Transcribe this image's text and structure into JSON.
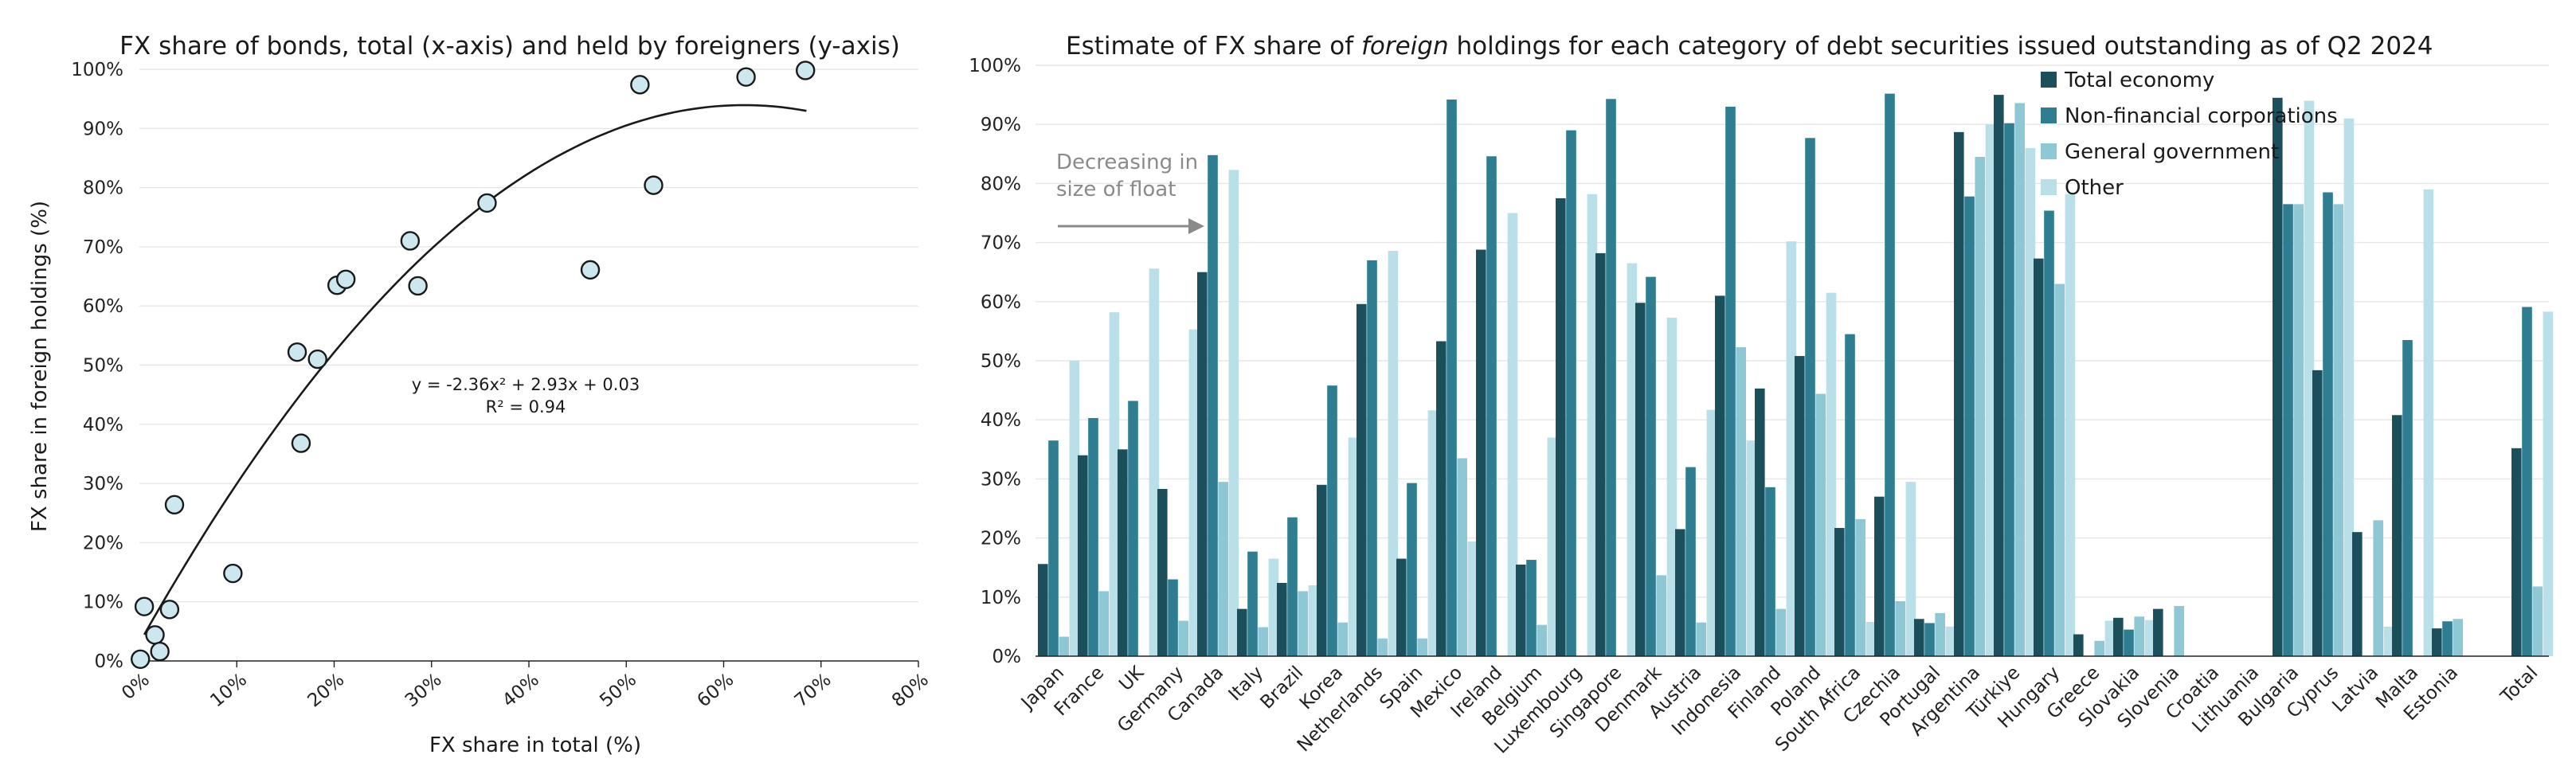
{
  "chart_data": [
    {
      "type": "scatter",
      "title": "FX share of bonds, total (x-axis) and held by foreigners (y-axis)",
      "xlabel": "FX share in total (%)",
      "ylabel": "FX share in foreign holdings (%)",
      "xlim": [
        0,
        80
      ],
      "ylim": [
        0,
        100
      ],
      "x_ticks": [
        "0%",
        "10%",
        "20%",
        "30%",
        "40%",
        "50%",
        "60%",
        "70%",
        "80%"
      ],
      "y_ticks": [
        "0%",
        "10%",
        "20%",
        "30%",
        "40%",
        "50%",
        "60%",
        "70%",
        "80%",
        "90%",
        "100%"
      ],
      "grid": "horizontal",
      "points": [
        {
          "x": 0.1,
          "y": 0.3
        },
        {
          "x": 0.5,
          "y": 9.2
        },
        {
          "x": 1.6,
          "y": 4.4
        },
        {
          "x": 2.1,
          "y": 1.6
        },
        {
          "x": 3.1,
          "y": 8.7
        },
        {
          "x": 3.6,
          "y": 26.4
        },
        {
          "x": 9.6,
          "y": 14.8
        },
        {
          "x": 16.2,
          "y": 52.2
        },
        {
          "x": 16.6,
          "y": 36.8
        },
        {
          "x": 18.3,
          "y": 51.0
        },
        {
          "x": 20.3,
          "y": 63.5
        },
        {
          "x": 21.2,
          "y": 64.5
        },
        {
          "x": 27.8,
          "y": 71.0
        },
        {
          "x": 28.6,
          "y": 63.4
        },
        {
          "x": 35.7,
          "y": 77.4
        },
        {
          "x": 46.3,
          "y": 66.1
        },
        {
          "x": 51.4,
          "y": 97.4
        },
        {
          "x": 52.8,
          "y": 80.4
        },
        {
          "x": 62.3,
          "y": 98.7
        },
        {
          "x": 68.4,
          "y": 99.8
        }
      ],
      "trendline": {
        "a": -2.36,
        "b": 2.93,
        "c": 0.03,
        "x_from": 0.5,
        "x_to": 68.5
      },
      "annotation": {
        "equation": "y = -2.36x² + 2.93x + 0.03",
        "r2": "R² = 0.94"
      },
      "colors": {
        "marker_fill": "#cde7ee",
        "marker_edge": "#1a1a1a",
        "line": "#1a1a1a"
      }
    },
    {
      "type": "bar",
      "title_before": "Estimate of FX share of ",
      "title_italic": "foreign",
      "title_after": " holdings for each category of debt securities issued outstanding as of Q2 2024",
      "ylim": [
        0,
        100
      ],
      "y_ticks": [
        "0%",
        "10%",
        "20%",
        "30%",
        "40%",
        "50%",
        "60%",
        "70%",
        "80%",
        "90%",
        "100%"
      ],
      "grid": "horizontal",
      "legend_position": "top-right",
      "annotation": {
        "line1": "Decreasing in",
        "line2": "size of float"
      },
      "categories": [
        "Japan",
        "France",
        "UK",
        "Germany",
        "Canada",
        "Italy",
        "Brazil",
        "Korea",
        "Netherlands",
        "Spain",
        "Mexico",
        "Ireland",
        "Belgium",
        "Luxembourg",
        "Singapore",
        "Denmark",
        "Austria",
        "Indonesia",
        "Finland",
        "Poland",
        "South Africa",
        "Czechia",
        "Portugal",
        "Argentina",
        "Türkiye",
        "Hungary",
        "Greece",
        "Slovakia",
        "Slovenia",
        "Croatia",
        "Lithuania",
        "Bulgaria",
        "Cyprus",
        "Latvia",
        "Malta",
        "Estonia",
        "",
        "Total"
      ],
      "series": [
        {
          "name": "Total economy",
          "color": "#1b4f5c",
          "values": [
            15.6,
            34.0,
            35.0,
            28.3,
            65.0,
            8.0,
            12.4,
            29.0,
            59.6,
            16.5,
            53.3,
            68.8,
            15.5,
            77.5,
            68.2,
            59.8,
            21.5,
            61.0,
            45.3,
            50.8,
            21.7,
            27.0,
            6.3,
            88.7,
            95.0,
            67.3,
            3.7,
            6.5,
            8.0,
            0,
            0,
            94.5,
            48.4,
            21.0,
            40.8,
            4.7,
            0,
            35.2
          ]
        },
        {
          "name": "Non-financial corporations",
          "color": "#2e7d90",
          "values": [
            36.5,
            40.3,
            43.2,
            13.0,
            84.8,
            17.7,
            23.5,
            45.8,
            67.0,
            29.3,
            94.2,
            84.6,
            16.3,
            89.0,
            94.3,
            64.2,
            32.0,
            93.0,
            28.6,
            87.7,
            54.5,
            95.2,
            5.6,
            77.8,
            90.2,
            75.4,
            0,
            4.5,
            0,
            0,
            0,
            76.5,
            78.5,
            0,
            53.5,
            5.9,
            0,
            59.1
          ]
        },
        {
          "name": "General government",
          "color": "#8ec8d5",
          "values": [
            3.3,
            11.0,
            0,
            6.0,
            29.5,
            4.9,
            11.0,
            5.7,
            3.0,
            3.0,
            33.5,
            0,
            5.3,
            0,
            0,
            13.7,
            5.7,
            52.3,
            8.0,
            44.4,
            23.2,
            9.3,
            7.3,
            84.5,
            93.6,
            63.0,
            2.6,
            6.7,
            8.5,
            0,
            0,
            76.5,
            76.5,
            23.0,
            0,
            6.3,
            0,
            11.8
          ]
        },
        {
          "name": "Other",
          "color": "#b9dfe8",
          "values": [
            50.0,
            58.2,
            65.6,
            55.3,
            82.3,
            16.5,
            12.0,
            37.0,
            68.6,
            41.6,
            19.4,
            75.0,
            37.0,
            78.2,
            66.5,
            57.3,
            41.7,
            36.5,
            70.2,
            61.5,
            5.8,
            29.5,
            5.0,
            90.0,
            86.0,
            78.2,
            6.0,
            6.1,
            0,
            0,
            0,
            94.0,
            91.0,
            5.0,
            79.0,
            0,
            0,
            58.3
          ]
        }
      ]
    }
  ]
}
